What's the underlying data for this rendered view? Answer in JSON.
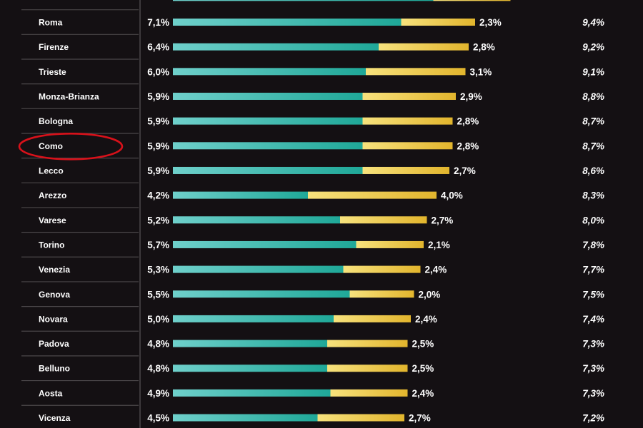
{
  "chart_data": {
    "type": "bar",
    "stacked": true,
    "orientation": "horizontal",
    "legend": "none",
    "grid": false,
    "highlight": "Como",
    "colors": {
      "segment_a": "#1fa898",
      "segment_a_light": "#6fd0cb",
      "segment_b": "#e2b52d",
      "segment_b_light": "#f7e27d",
      "divider": "#4b474a",
      "highlight_circle": "#d8111a"
    },
    "top_partial_row": {
      "value_a": 8.1,
      "value_b": 2.4
    },
    "rows": [
      {
        "city": "Roma",
        "a": 7.1,
        "a_label": "7,1%",
        "b": 2.3,
        "b_label": "2,3%",
        "total_label": "9,4%"
      },
      {
        "city": "Firenze",
        "a": 6.4,
        "a_label": "6,4%",
        "b": 2.8,
        "b_label": "2,8%",
        "total_label": "9,2%"
      },
      {
        "city": "Trieste",
        "a": 6.0,
        "a_label": "6,0%",
        "b": 3.1,
        "b_label": "3,1%",
        "total_label": "9,1%"
      },
      {
        "city": "Monza-Brianza",
        "a": 5.9,
        "a_label": "5,9%",
        "b": 2.9,
        "b_label": "2,9%",
        "total_label": "8,8%"
      },
      {
        "city": "Bologna",
        "a": 5.9,
        "a_label": "5,9%",
        "b": 2.8,
        "b_label": "2,8%",
        "total_label": "8,7%"
      },
      {
        "city": "Como",
        "a": 5.9,
        "a_label": "5,9%",
        "b": 2.8,
        "b_label": "2,8%",
        "total_label": "8,7%"
      },
      {
        "city": "Lecco",
        "a": 5.9,
        "a_label": "5,9%",
        "b": 2.7,
        "b_label": "2,7%",
        "total_label": "8,6%"
      },
      {
        "city": "Arezzo",
        "a": 4.2,
        "a_label": "4,2%",
        "b": 4.0,
        "b_label": "4,0%",
        "total_label": "8,3%"
      },
      {
        "city": "Varese",
        "a": 5.2,
        "a_label": "5,2%",
        "b": 2.7,
        "b_label": "2,7%",
        "total_label": "8,0%"
      },
      {
        "city": "Torino",
        "a": 5.7,
        "a_label": "5,7%",
        "b": 2.1,
        "b_label": "2,1%",
        "total_label": "7,8%"
      },
      {
        "city": "Venezia",
        "a": 5.3,
        "a_label": "5,3%",
        "b": 2.4,
        "b_label": "2,4%",
        "total_label": "7,7%"
      },
      {
        "city": "Genova",
        "a": 5.5,
        "a_label": "5,5%",
        "b": 2.0,
        "b_label": "2,0%",
        "total_label": "7,5%"
      },
      {
        "city": "Novara",
        "a": 5.0,
        "a_label": "5,0%",
        "b": 2.4,
        "b_label": "2,4%",
        "total_label": "7,4%"
      },
      {
        "city": "Padova",
        "a": 4.8,
        "a_label": "4,8%",
        "b": 2.5,
        "b_label": "2,5%",
        "total_label": "7,3%"
      },
      {
        "city": "Belluno",
        "a": 4.8,
        "a_label": "4,8%",
        "b": 2.5,
        "b_label": "2,5%",
        "total_label": "7,3%"
      },
      {
        "city": "Aosta",
        "a": 4.9,
        "a_label": "4,9%",
        "b": 2.4,
        "b_label": "2,4%",
        "total_label": "7,3%"
      },
      {
        "city": "Vicenza",
        "a": 4.5,
        "a_label": "4,5%",
        "b": 2.7,
        "b_label": "2,7%",
        "total_label": "7,2%"
      }
    ]
  }
}
